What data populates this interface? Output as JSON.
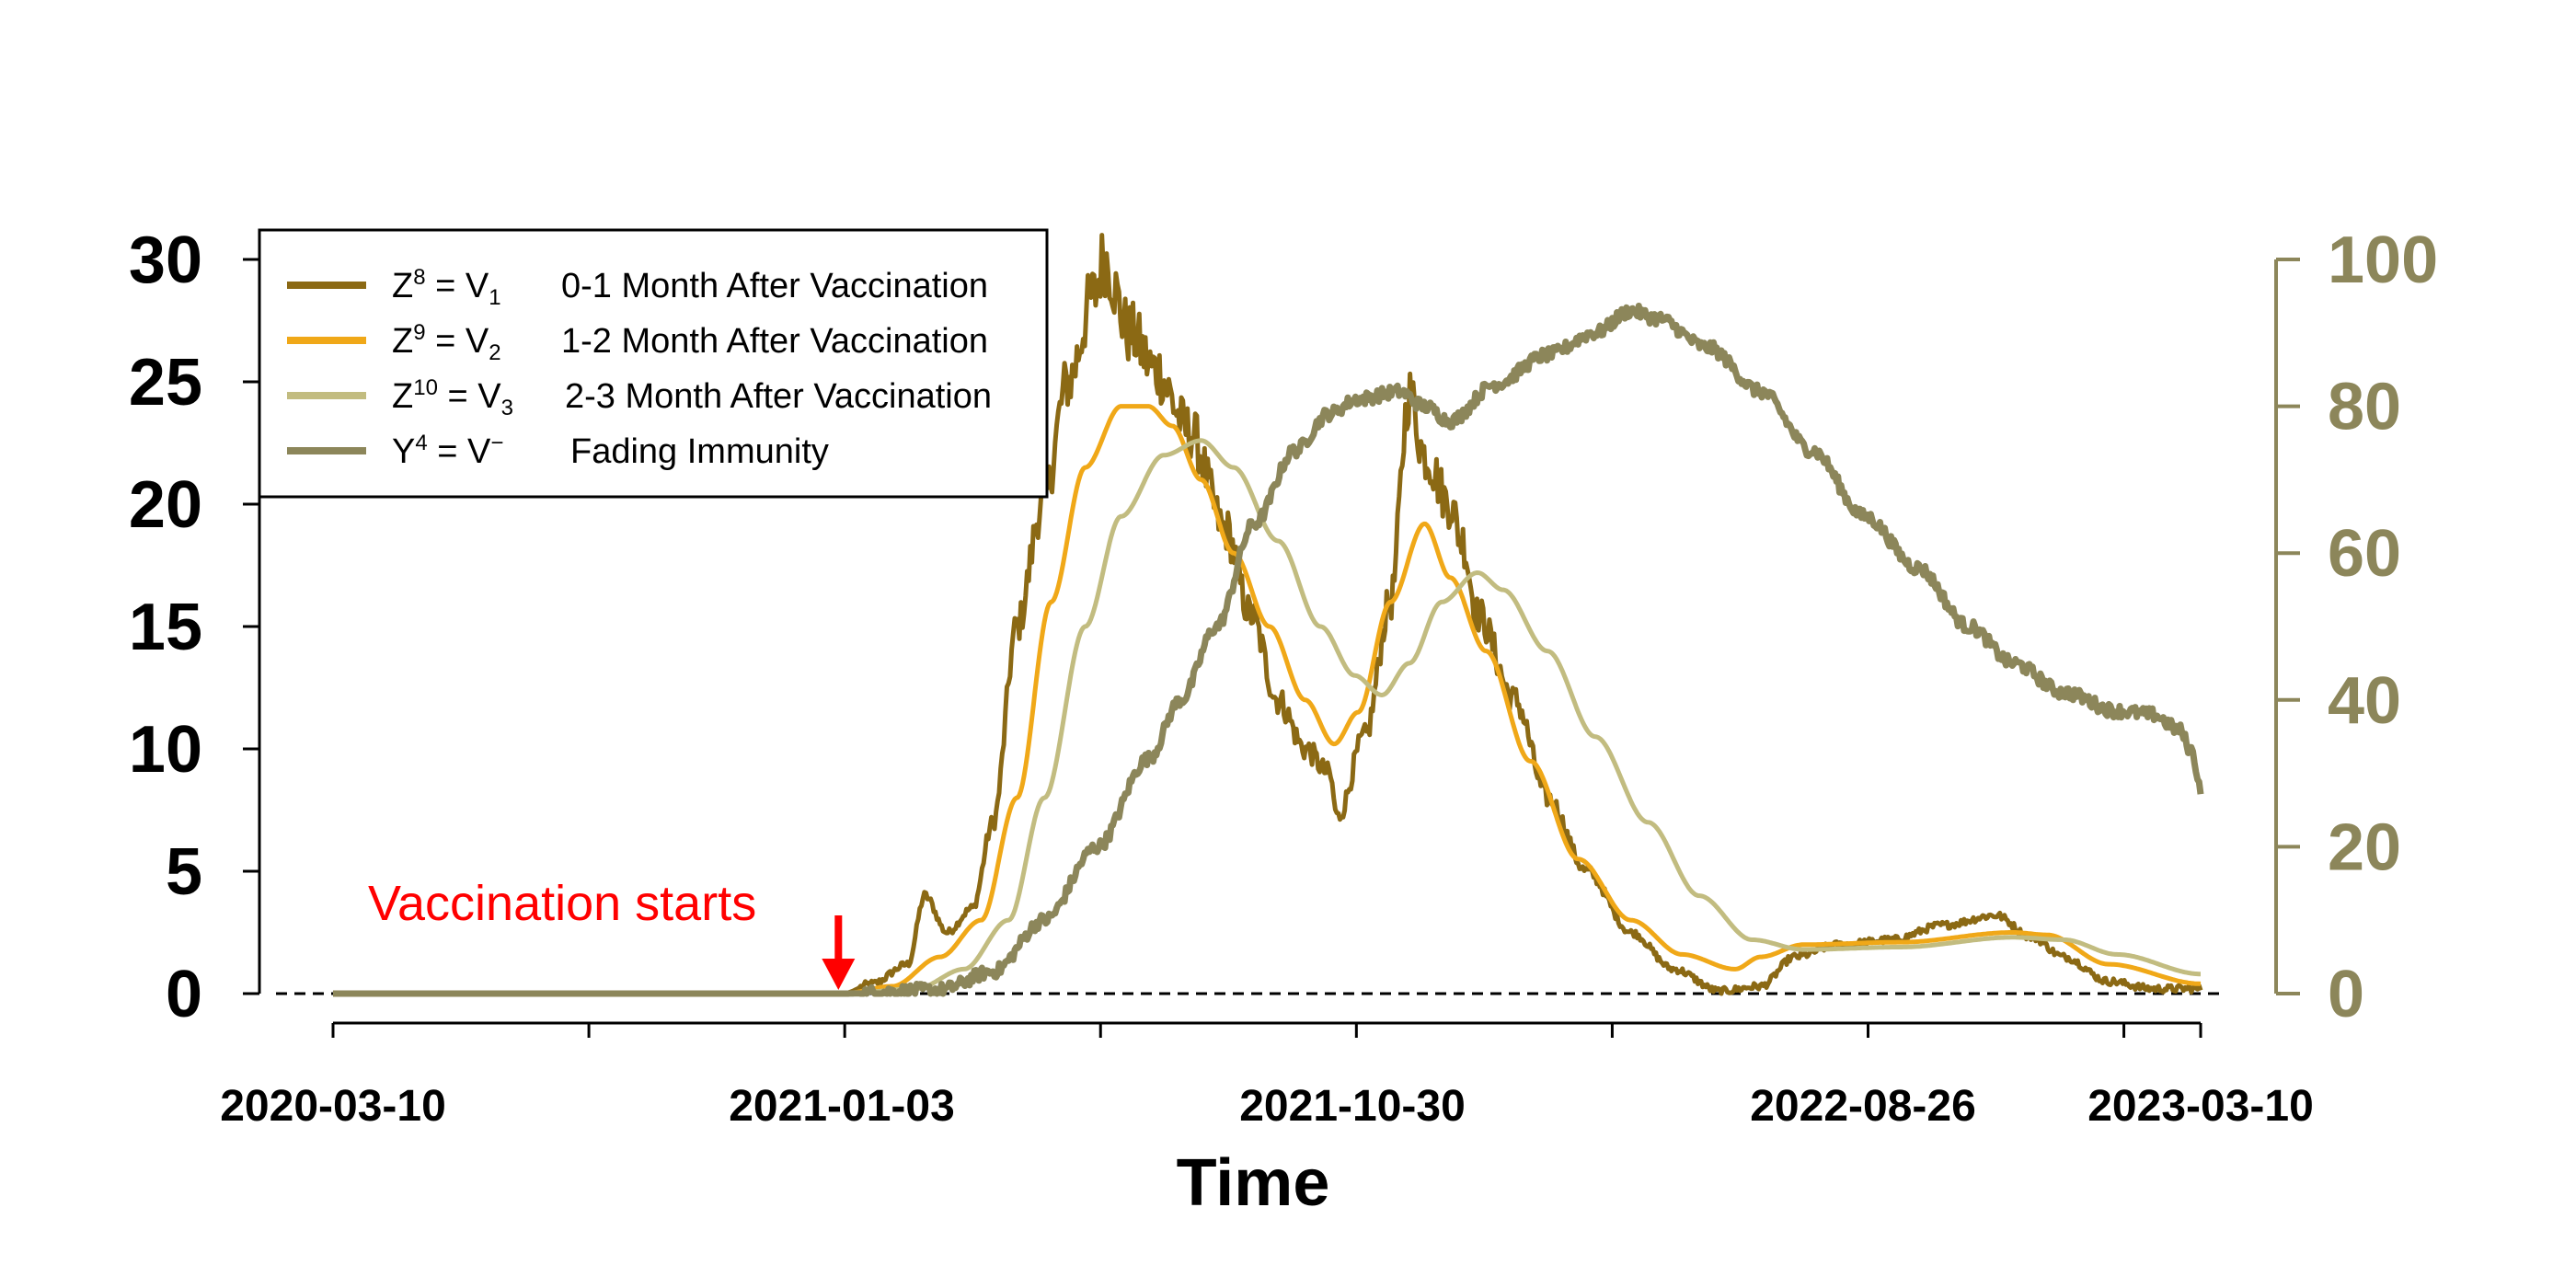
{
  "chart_data": {
    "type": "line",
    "xlabel": "Time",
    "x_tick_labels": [
      "2020-03-10",
      "2021-01-03",
      "2021-10-30",
      "2022-08-26",
      "2023-03-10"
    ],
    "x_range": [
      "2020-03-10",
      "2023-03-10"
    ],
    "y_left_range": [
      0,
      30
    ],
    "y_left_ticks": [
      "0",
      "5",
      "10",
      "15",
      "20",
      "25",
      "30"
    ],
    "y_right_range": [
      0,
      100
    ],
    "y_right_ticks": [
      "0",
      "20",
      "40",
      "60",
      "80",
      "100"
    ],
    "grid": false,
    "legend_position": "top-left",
    "reference_line": {
      "y": 0,
      "style": "dashed"
    },
    "annotation": {
      "text": "Vaccination starts",
      "x": "2021-01-03",
      "color": "#FF0000"
    },
    "series": [
      {
        "legend": {
          "base": "Z",
          "sup": "8",
          "eq": " = V",
          "sub": "1",
          "desc": "0-1 Month After Vaccination"
        },
        "color": "#8B6914",
        "axis": "left",
        "jagged": true,
        "points": [
          [
            "2020-03-10",
            0
          ],
          [
            "2021-01-03",
            0
          ],
          [
            "2021-01-20",
            0.4
          ],
          [
            "2021-02-10",
            1.2
          ],
          [
            "2021-02-20",
            4
          ],
          [
            "2021-03-05",
            2.5
          ],
          [
            "2021-03-20",
            3.5
          ],
          [
            "2021-04-01",
            7
          ],
          [
            "2021-04-15",
            15
          ],
          [
            "2021-04-30",
            20
          ],
          [
            "2021-05-15",
            25
          ],
          [
            "2021-05-30",
            28.5
          ],
          [
            "2021-06-05",
            30
          ],
          [
            "2021-06-20",
            27
          ],
          [
            "2021-07-05",
            25.5
          ],
          [
            "2021-07-25",
            23
          ],
          [
            "2021-08-15",
            19
          ],
          [
            "2021-08-30",
            15.5
          ],
          [
            "2021-09-15",
            12
          ],
          [
            "2021-10-01",
            10
          ],
          [
            "2021-10-15",
            9
          ],
          [
            "2021-10-20",
            7.2
          ],
          [
            "2021-11-05",
            10.5
          ],
          [
            "2021-11-20",
            16
          ],
          [
            "2021-12-01",
            24.5
          ],
          [
            "2021-12-10",
            22
          ],
          [
            "2021-12-25",
            20
          ],
          [
            "2022-01-01",
            18.5
          ],
          [
            "2022-01-10",
            15.5
          ],
          [
            "2022-02-01",
            12
          ],
          [
            "2022-02-20",
            8
          ],
          [
            "2022-03-15",
            5
          ],
          [
            "2022-04-10",
            2.5
          ],
          [
            "2022-05-05",
            1
          ],
          [
            "2022-06-01",
            0.1
          ],
          [
            "2022-06-25",
            0.3
          ],
          [
            "2022-07-15",
            1.5
          ],
          [
            "2022-08-10",
            2
          ],
          [
            "2022-09-10",
            2.2
          ],
          [
            "2022-10-10",
            2.8
          ],
          [
            "2022-11-10",
            3.2
          ],
          [
            "2022-12-01",
            2.3
          ],
          [
            "2022-12-20",
            1.5
          ],
          [
            "2023-01-15",
            0.5
          ],
          [
            "2023-02-10",
            0.2
          ],
          [
            "2023-03-10",
            0.2
          ]
        ]
      },
      {
        "legend": {
          "base": "Z",
          "sup": "9",
          "eq": " = V",
          "sub": "2",
          "desc": "1-2 Month After Vaccination"
        },
        "color": "#F0A818",
        "axis": "left",
        "jagged": false,
        "points": [
          [
            "2020-03-10",
            0
          ],
          [
            "2021-01-03",
            0
          ],
          [
            "2021-02-01",
            0.3
          ],
          [
            "2021-03-01",
            1.5
          ],
          [
            "2021-03-25",
            3
          ],
          [
            "2021-04-15",
            8
          ],
          [
            "2021-05-05",
            16
          ],
          [
            "2021-05-25",
            21.5
          ],
          [
            "2021-06-15",
            24
          ],
          [
            "2021-07-01",
            24
          ],
          [
            "2021-07-15",
            23.2
          ],
          [
            "2021-08-01",
            21
          ],
          [
            "2021-08-20",
            18
          ],
          [
            "2021-09-10",
            15
          ],
          [
            "2021-10-01",
            12
          ],
          [
            "2021-10-18",
            10.2
          ],
          [
            "2021-11-01",
            11.5
          ],
          [
            "2021-11-20",
            16
          ],
          [
            "2021-12-10",
            19.2
          ],
          [
            "2021-12-25",
            17
          ],
          [
            "2022-01-15",
            14
          ],
          [
            "2022-02-10",
            9.5
          ],
          [
            "2022-03-10",
            5.5
          ],
          [
            "2022-04-10",
            3
          ],
          [
            "2022-05-10",
            1.6
          ],
          [
            "2022-06-10",
            1
          ],
          [
            "2022-06-25",
            1.5
          ],
          [
            "2022-07-20",
            2
          ],
          [
            "2022-09-15",
            2.1
          ],
          [
            "2022-11-20",
            2.5
          ],
          [
            "2022-12-10",
            2.4
          ],
          [
            "2023-01-15",
            1.2
          ],
          [
            "2023-03-10",
            0.4
          ]
        ]
      },
      {
        "legend": {
          "base": "Z",
          "sup": "10",
          "eq": " = V",
          "sub": "3",
          "desc": "2-3 Month After Vaccination"
        },
        "color": "#C2BC80",
        "axis": "left",
        "jagged": false,
        "points": [
          [
            "2020-03-10",
            0
          ],
          [
            "2021-01-03",
            0
          ],
          [
            "2021-02-15",
            0.2
          ],
          [
            "2021-03-15",
            1
          ],
          [
            "2021-04-10",
            3
          ],
          [
            "2021-05-01",
            8
          ],
          [
            "2021-05-25",
            15
          ],
          [
            "2021-06-15",
            19.5
          ],
          [
            "2021-07-10",
            22
          ],
          [
            "2021-08-01",
            22.6
          ],
          [
            "2021-08-20",
            21.5
          ],
          [
            "2021-09-15",
            18.5
          ],
          [
            "2021-10-10",
            15
          ],
          [
            "2021-10-30",
            13
          ],
          [
            "2021-11-15",
            12.2
          ],
          [
            "2021-12-01",
            13.5
          ],
          [
            "2021-12-20",
            16
          ],
          [
            "2022-01-10",
            17.2
          ],
          [
            "2022-01-25",
            16.5
          ],
          [
            "2022-02-20",
            14
          ],
          [
            "2022-03-20",
            10.5
          ],
          [
            "2022-04-20",
            7
          ],
          [
            "2022-05-20",
            4
          ],
          [
            "2022-06-20",
            2.2
          ],
          [
            "2022-07-20",
            1.8
          ],
          [
            "2022-09-15",
            1.9
          ],
          [
            "2022-11-20",
            2.3
          ],
          [
            "2022-12-20",
            2.2
          ],
          [
            "2023-01-20",
            1.6
          ],
          [
            "2023-03-10",
            0.8
          ]
        ]
      },
      {
        "legend": {
          "base": "Y",
          "sup": "4",
          "eq": " = V",
          "sub": "",
          "sup2": "−",
          "desc": "Fading Immunity"
        },
        "color": "#8C865A",
        "axis": "right",
        "jagged": true,
        "points": [
          [
            "2020-03-10",
            0
          ],
          [
            "2021-01-03",
            0
          ],
          [
            "2021-03-01",
            0.5
          ],
          [
            "2021-04-01",
            3
          ],
          [
            "2021-05-01",
            10
          ],
          [
            "2021-06-01",
            20
          ],
          [
            "2021-07-01",
            32
          ],
          [
            "2021-07-20",
            40
          ],
          [
            "2021-08-10",
            50
          ],
          [
            "2021-09-01",
            64
          ],
          [
            "2021-09-25",
            74
          ],
          [
            "2021-10-15",
            79
          ],
          [
            "2021-11-01",
            81
          ],
          [
            "2021-11-25",
            82
          ],
          [
            "2021-12-10",
            80
          ],
          [
            "2021-12-25",
            78
          ],
          [
            "2022-01-20",
            83
          ],
          [
            "2022-02-20",
            87
          ],
          [
            "2022-03-20",
            90
          ],
          [
            "2022-04-10",
            93
          ],
          [
            "2022-04-25",
            92
          ],
          [
            "2022-05-25",
            88
          ],
          [
            "2022-06-25",
            82
          ],
          [
            "2022-07-25",
            74
          ],
          [
            "2022-08-25",
            65
          ],
          [
            "2022-09-25",
            58
          ],
          [
            "2022-10-25",
            50
          ],
          [
            "2022-11-20",
            45
          ],
          [
            "2022-12-20",
            41
          ],
          [
            "2023-01-20",
            38.5
          ],
          [
            "2023-02-10",
            38
          ],
          [
            "2023-02-25",
            36
          ],
          [
            "2023-03-05",
            33
          ],
          [
            "2023-03-10",
            28
          ]
        ]
      }
    ]
  }
}
